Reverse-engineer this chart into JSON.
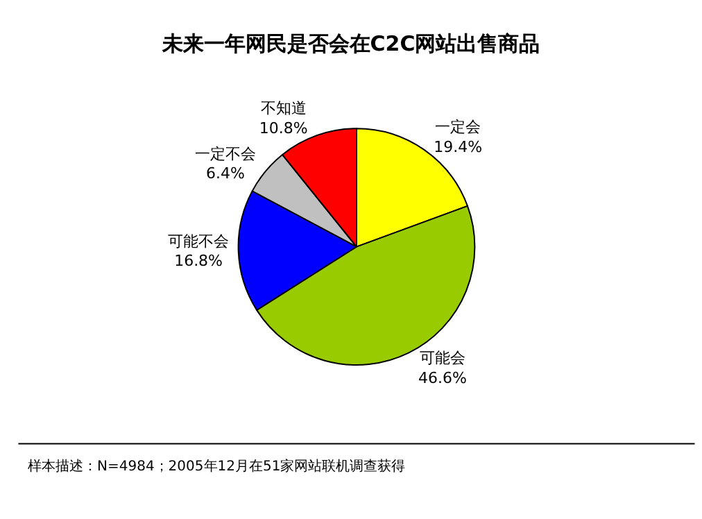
{
  "chart_data": {
    "type": "pie",
    "title": "未来一年网民是否会在C2C网站出售商品",
    "categories": [
      "一定会",
      "可能会",
      "可能不会",
      "一定不会",
      "不知道"
    ],
    "values": [
      19.4,
      46.6,
      16.8,
      6.4,
      10.8
    ],
    "value_labels": [
      "19.4%",
      "46.6%",
      "16.8%",
      "6.4%",
      "10.8%"
    ],
    "colors": [
      "#ffff00",
      "#99cc00",
      "#0000ff",
      "#c0c0c0",
      "#ff0000"
    ],
    "annotations": [
      "样本描述：N=4984；2005年12月在51家网站联机调查获得"
    ],
    "legend": false
  }
}
